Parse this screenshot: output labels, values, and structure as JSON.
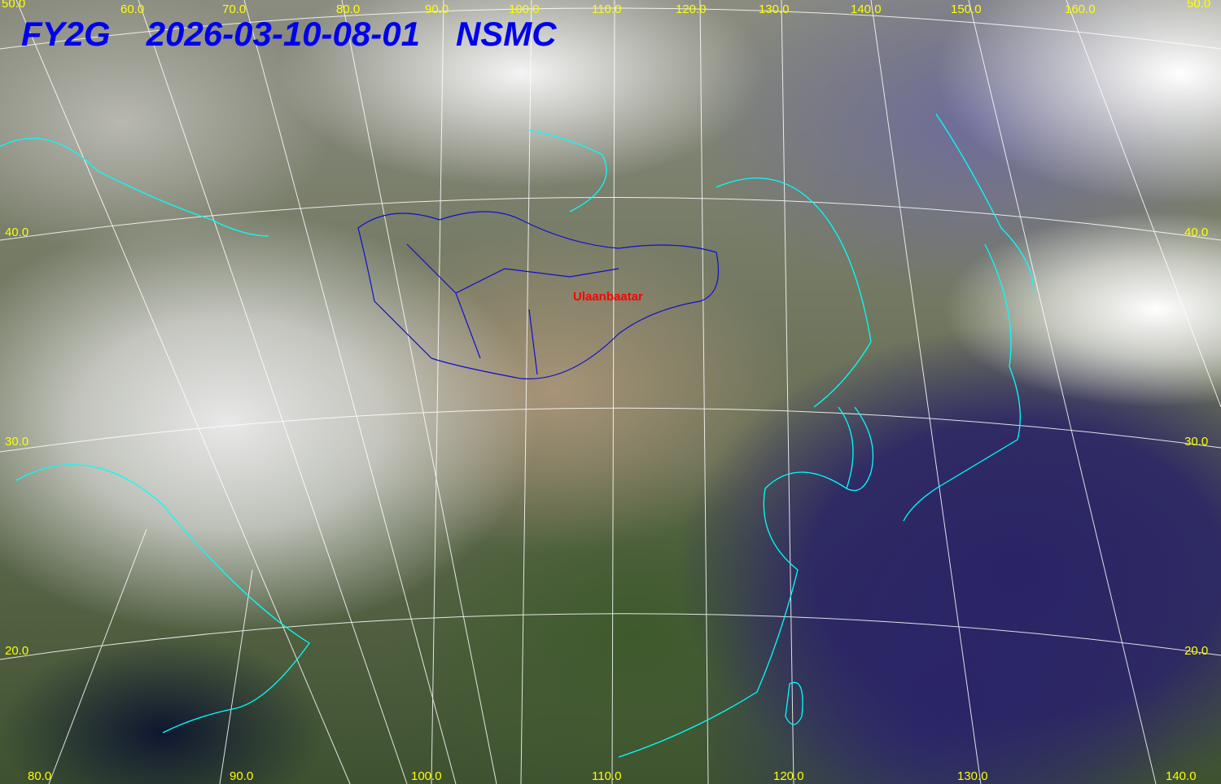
{
  "title": {
    "satellite": "FY2G",
    "timestamp": "2026-03-10-08-01",
    "agency": "NSMC"
  },
  "city": "Ulaanbaatar",
  "top_labels": [
    "50.0",
    "60.0",
    "70.0",
    "80.0",
    "90.0",
    "100.0",
    "110.0",
    "120.0",
    "130.0",
    "140.0",
    "150.0",
    "160.0",
    "50.0"
  ],
  "left_labels": [
    "40.0",
    "30.0",
    "20.0"
  ],
  "right_labels": [
    "40.0",
    "30.0",
    "20.0"
  ],
  "bottom_labels": [
    "80.0",
    "90.0",
    "100.0",
    "110.0",
    "120.0",
    "130.0",
    "140.0"
  ],
  "colors": {
    "labels": "#ffff00",
    "title": "#0000ee",
    "coastline": "#00ffff",
    "border": "#0000cc",
    "city": "#ff0000",
    "grid": "#ffffff"
  }
}
